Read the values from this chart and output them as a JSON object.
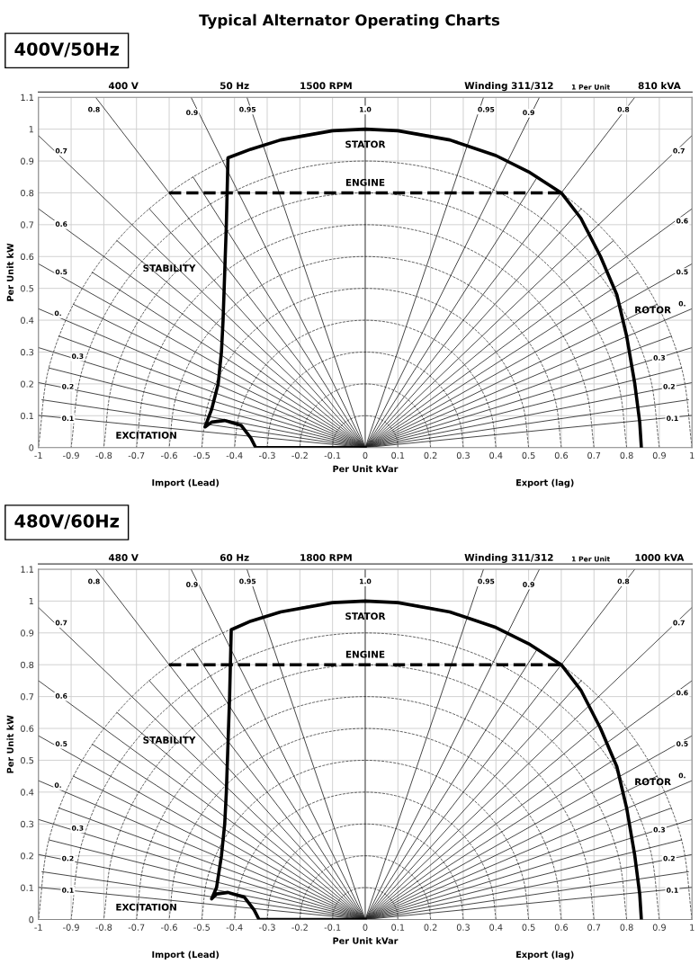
{
  "chart_data": [
    {
      "type": "line",
      "title": "Typical Alternator Operating Charts",
      "subtitle": "400V/50Hz",
      "ylabel": "Per Unit kW",
      "xlabel": "Per Unit kVar",
      "xlim": [
        -1,
        1
      ],
      "xticks": [
        -1,
        -0.9,
        -0.8,
        -0.7,
        -0.6,
        -0.5,
        -0.4,
        -0.3,
        -0.2,
        -0.1,
        0,
        0.1,
        0.2,
        0.3,
        0.4,
        0.5,
        0.6,
        0.7,
        0.8,
        0.9,
        1
      ],
      "ylim": [
        0,
        1.1
      ],
      "yticks": [
        0,
        0.1,
        0.2,
        0.3,
        0.4,
        0.5,
        0.6,
        0.7,
        0.8,
        0.9,
        1,
        1.1
      ],
      "grid": true,
      "legend": false,
      "marker": "none",
      "series": [
        {
          "color": "#000000",
          "x": [
            0,
            -0.335,
            -0.35,
            -0.38,
            -0.43,
            -0.47,
            -0.49,
            -0.47,
            -0.45,
            -0.44,
            -0.435,
            -0.43,
            -0.425,
            -0.42,
            -0.35,
            -0.259,
            -0.1,
            0,
            0.1,
            0.259,
            0.4,
            0.5,
            0.6,
            0.66,
            0.72,
            0.77,
            0.8,
            0.825,
            0.84,
            0.845
          ],
          "values": [
            0,
            0,
            0.03,
            0.07,
            0.085,
            0.08,
            0.065,
            0.12,
            0.2,
            0.3,
            0.4,
            0.55,
            0.7,
            0.91,
            0.937,
            0.966,
            0.995,
            1,
            0.995,
            0.966,
            0.917,
            0.866,
            0.8,
            0.72,
            0.6,
            0.48,
            0.35,
            0.2,
            0.08,
            0
          ]
        },
        {
          "color": "#000000",
          "line_style": "dashed",
          "x": [
            -0.6,
            0.6
          ],
          "values": [
            0.8,
            0.8
          ]
        },
        {
          "color": "#444444",
          "line_style": "dashed",
          "x": [
            0.1,
            0.097,
            0.087,
            0.071,
            0.05,
            0.026,
            0,
            -0.026,
            -0.05,
            -0.071,
            -0.087,
            -0.097,
            -0.1
          ],
          "values": [
            0,
            0.026,
            0.05,
            0.071,
            0.087,
            0.097,
            0.1,
            0.097,
            0.087,
            0.071,
            0.05,
            0.026,
            0
          ]
        },
        {
          "color": "#444444",
          "line_style": "dashed",
          "x": [
            0.2,
            0.193,
            0.173,
            0.141,
            0.1,
            0.052,
            0,
            -0.052,
            -0.1,
            -0.141,
            -0.173,
            -0.193,
            -0.2
          ],
          "values": [
            0,
            0.052,
            0.1,
            0.141,
            0.173,
            0.193,
            0.2,
            0.193,
            0.173,
            0.141,
            0.1,
            0.052,
            0
          ]
        },
        {
          "color": "#444444",
          "line_style": "dashed",
          "x": [
            0.3,
            0.29,
            0.26,
            0.212,
            0.15,
            0.078,
            0,
            -0.078,
            -0.15,
            -0.212,
            -0.26,
            -0.29,
            -0.3
          ],
          "values": [
            0,
            0.078,
            0.15,
            0.212,
            0.26,
            0.29,
            0.3,
            0.29,
            0.26,
            0.212,
            0.15,
            0.078,
            0
          ]
        },
        {
          "color": "#444444",
          "line_style": "dashed",
          "x": [
            0.4,
            0.386,
            0.346,
            0.283,
            0.2,
            0.104,
            0,
            -0.104,
            -0.2,
            -0.283,
            -0.346,
            -0.386,
            -0.4
          ],
          "values": [
            0,
            0.104,
            0.2,
            0.283,
            0.346,
            0.386,
            0.4,
            0.386,
            0.346,
            0.283,
            0.2,
            0.104,
            0
          ]
        },
        {
          "color": "#444444",
          "line_style": "dashed",
          "x": [
            0.5,
            0.483,
            0.433,
            0.354,
            0.25,
            0.13,
            0,
            -0.13,
            -0.25,
            -0.354,
            -0.433,
            -0.483,
            -0.5
          ],
          "values": [
            0,
            0.13,
            0.25,
            0.354,
            0.433,
            0.483,
            0.5,
            0.483,
            0.433,
            0.354,
            0.25,
            0.13,
            0
          ]
        },
        {
          "color": "#444444",
          "line_style": "dashed",
          "x": [
            0.6,
            0.58,
            0.52,
            0.424,
            0.3,
            0.155,
            0,
            -0.155,
            -0.3,
            -0.424,
            -0.52,
            -0.58,
            -0.6
          ],
          "values": [
            0,
            0.155,
            0.3,
            0.424,
            0.52,
            0.58,
            0.6,
            0.58,
            0.52,
            0.424,
            0.3,
            0.155,
            0
          ]
        },
        {
          "color": "#444444",
          "line_style": "dashed",
          "x": [
            0.7,
            0.676,
            0.606,
            0.495,
            0.35,
            0.181,
            0,
            -0.181,
            -0.35,
            -0.495,
            -0.606,
            -0.676,
            -0.7
          ],
          "values": [
            0,
            0.181,
            0.35,
            0.495,
            0.606,
            0.676,
            0.7,
            0.676,
            0.606,
            0.495,
            0.35,
            0.181,
            0
          ]
        },
        {
          "color": "#444444",
          "line_style": "dashed",
          "x": [
            0.8,
            0.773,
            0.693,
            0.566,
            0.4,
            0.207,
            0,
            -0.207,
            -0.4,
            -0.566,
            -0.693,
            -0.773,
            -0.8
          ],
          "values": [
            0,
            0.207,
            0.4,
            0.566,
            0.693,
            0.773,
            0.8,
            0.773,
            0.693,
            0.566,
            0.4,
            0.207,
            0
          ]
        },
        {
          "color": "#444444",
          "line_style": "dashed",
          "x": [
            0.9,
            0.869,
            0.779,
            0.636,
            0.45,
            0.233,
            0,
            -0.233,
            -0.45,
            -0.636,
            -0.779,
            -0.869,
            -0.9
          ],
          "values": [
            0,
            0.233,
            0.45,
            0.636,
            0.779,
            0.869,
            0.9,
            0.869,
            0.779,
            0.636,
            0.45,
            0.233,
            0
          ]
        },
        {
          "color": "#444444",
          "line_style": "dashed",
          "x": [
            1,
            0.966,
            0.866,
            0.707,
            0.5,
            0.259,
            0,
            -0.259,
            -0.5,
            -0.707,
            -0.866,
            -0.966,
            -1
          ],
          "values": [
            0,
            0.259,
            0.5,
            0.707,
            0.866,
            0.966,
            1,
            0.966,
            0.866,
            0.707,
            0.5,
            0.259,
            0
          ]
        },
        {
          "color": "#222222",
          "x": [
            0,
            0
          ],
          "values": [
            0,
            1.1
          ]
        },
        {
          "color": "#222222",
          "x": [
            -1,
            0,
            1
          ],
          "values": [
            0.101,
            0,
            0.101
          ]
        },
        {
          "color": "#222222",
          "x": [
            -0.989,
            0,
            0.989
          ],
          "values": [
            0.15,
            0,
            0.15
          ]
        },
        {
          "color": "#222222",
          "x": [
            -1,
            0,
            1
          ],
          "values": [
            0.204,
            0,
            0.204
          ]
        },
        {
          "color": "#222222",
          "x": [
            -0.968,
            0,
            0.968
          ],
          "values": [
            0.25,
            0,
            0.25
          ]
        },
        {
          "color": "#222222",
          "x": [
            -1,
            0,
            1
          ],
          "values": [
            0.314,
            0,
            0.314
          ]
        },
        {
          "color": "#222222",
          "x": [
            -0.937,
            0,
            0.937
          ],
          "values": [
            0.35,
            0,
            0.35
          ]
        },
        {
          "color": "#222222",
          "x": [
            -1,
            0,
            1
          ],
          "values": [
            0.436,
            0,
            0.436
          ]
        },
        {
          "color": "#222222",
          "x": [
            -0.893,
            0,
            0.893
          ],
          "values": [
            0.45,
            0,
            0.45
          ]
        },
        {
          "color": "#222222",
          "x": [
            -1,
            0,
            1
          ],
          "values": [
            0.577,
            0,
            0.577
          ]
        },
        {
          "color": "#222222",
          "x": [
            -0.835,
            0,
            0.835
          ],
          "values": [
            0.55,
            0,
            0.55
          ]
        },
        {
          "color": "#222222",
          "x": [
            -1,
            0,
            1
          ],
          "values": [
            0.75,
            0,
            0.75
          ]
        },
        {
          "color": "#222222",
          "x": [
            -0.76,
            0,
            0.76
          ],
          "values": [
            0.65,
            0,
            0.65
          ]
        },
        {
          "color": "#222222",
          "x": [
            -1,
            0,
            1
          ],
          "values": [
            0.98,
            0,
            0.98
          ]
        },
        {
          "color": "#222222",
          "x": [
            -0.661,
            0,
            0.661
          ],
          "values": [
            0.75,
            0,
            0.75
          ]
        },
        {
          "color": "#222222",
          "x": [
            -0.825,
            0,
            0.825
          ],
          "values": [
            1.1,
            0,
            1.1
          ]
        },
        {
          "color": "#222222",
          "x": [
            -0.527,
            0,
            0.527
          ],
          "values": [
            0.85,
            0,
            0.85
          ]
        },
        {
          "color": "#222222",
          "x": [
            -0.533,
            0,
            0.533
          ],
          "values": [
            1.1,
            0,
            1.1
          ]
        },
        {
          "color": "#222222",
          "x": [
            -0.362,
            0,
            0.362
          ],
          "values": [
            1.1,
            0,
            1.1
          ]
        }
      ],
      "annotations": [
        "400 V",
        "50 Hz",
        "1500 RPM",
        "Winding 311/312",
        "1 Per Unit",
        "810 kVA",
        "Import (Lead)",
        "Export (lag)",
        "STABILITY",
        "EXCITATION",
        {
          "text": "STATOR",
          "x": 0,
          "y": 0.95
        },
        {
          "text": "ENGINE",
          "x": 0,
          "y": 0.83
        },
        {
          "text": "ROTOR",
          "x": 0.88,
          "y": 0.43
        },
        {
          "text": "0.8",
          "x": -0.83,
          "y": 1.06
        },
        {
          "text": "0.9",
          "x": -0.53,
          "y": 1.05
        },
        {
          "text": "0.95",
          "x": -0.36,
          "y": 1.06
        },
        {
          "text": "1.0",
          "x": 0,
          "y": 1.06
        },
        {
          "text": "0.7",
          "x": -0.93,
          "y": 0.93
        },
        {
          "text": "0.6",
          "x": -0.93,
          "y": 0.7
        },
        {
          "text": "0.5",
          "x": -0.93,
          "y": 0.55
        },
        {
          "text": "0.",
          "x": -0.94,
          "y": 0.42
        },
        {
          "text": "0.3",
          "x": -0.88,
          "y": 0.285
        },
        {
          "text": "0.2",
          "x": -0.91,
          "y": 0.19
        },
        {
          "text": "0.1",
          "x": -0.91,
          "y": 0.09
        },
        {
          "text": "0.95",
          "x": 0.37,
          "y": 1.06
        },
        {
          "text": "0.9",
          "x": 0.5,
          "y": 1.05
        },
        {
          "text": "0.8",
          "x": 0.79,
          "y": 1.06
        },
        {
          "text": "0.7",
          "x": 0.96,
          "y": 0.93
        },
        {
          "text": "0.6",
          "x": 0.97,
          "y": 0.71
        },
        {
          "text": "0.5",
          "x": 0.97,
          "y": 0.55
        },
        {
          "text": "0.",
          "x": 0.97,
          "y": 0.45
        },
        {
          "text": "0.3",
          "x": 0.9,
          "y": 0.28
        },
        {
          "text": "0.2",
          "x": 0.93,
          "y": 0.19
        },
        {
          "text": "0.1",
          "x": 0.94,
          "y": 0.09
        }
      ]
    },
    {
      "type": "line",
      "subtitle": "480V/60Hz",
      "ylabel": "Per Unit kW",
      "xlabel": "Per Unit kVar",
      "xlim": [
        -1,
        1
      ],
      "xticks": [
        -1,
        -0.9,
        -0.8,
        -0.7,
        -0.6,
        -0.5,
        -0.4,
        -0.3,
        -0.2,
        -0.1,
        0,
        0.1,
        0.2,
        0.3,
        0.4,
        0.5,
        0.6,
        0.7,
        0.8,
        0.9,
        1
      ],
      "ylim": [
        0,
        1.1
      ],
      "yticks": [
        0,
        0.1,
        0.2,
        0.3,
        0.4,
        0.5,
        0.6,
        0.7,
        0.8,
        0.9,
        1,
        1.1
      ],
      "grid": true,
      "legend": false,
      "marker": "none",
      "series": [
        {
          "color": "#000000",
          "x": [
            0,
            -0.325,
            -0.34,
            -0.37,
            -0.42,
            -0.455,
            -0.47,
            -0.455,
            -0.44,
            -0.43,
            -0.425,
            -0.42,
            -0.415,
            -0.41,
            -0.35,
            -0.259,
            -0.1,
            0,
            0.1,
            0.259,
            0.4,
            0.5,
            0.6,
            0.66,
            0.72,
            0.77,
            0.8,
            0.825,
            0.84,
            0.845
          ],
          "values": [
            0,
            0,
            0.03,
            0.07,
            0.085,
            0.08,
            0.065,
            0.1,
            0.2,
            0.3,
            0.4,
            0.55,
            0.7,
            0.91,
            0.937,
            0.966,
            0.995,
            1,
            0.995,
            0.966,
            0.917,
            0.866,
            0.8,
            0.72,
            0.6,
            0.48,
            0.35,
            0.2,
            0.08,
            0
          ]
        },
        {
          "color": "#000000",
          "line_style": "dashed",
          "x": [
            -0.6,
            0.6
          ],
          "values": [
            0.8,
            0.8
          ]
        },
        {
          "color": "#444444",
          "line_style": "dashed",
          "x": [
            0.1,
            0.097,
            0.087,
            0.071,
            0.05,
            0.026,
            0,
            -0.026,
            -0.05,
            -0.071,
            -0.087,
            -0.097,
            -0.1
          ],
          "values": [
            0,
            0.026,
            0.05,
            0.071,
            0.087,
            0.097,
            0.1,
            0.097,
            0.087,
            0.071,
            0.05,
            0.026,
            0
          ]
        },
        {
          "color": "#444444",
          "line_style": "dashed",
          "x": [
            0.2,
            0.193,
            0.173,
            0.141,
            0.1,
            0.052,
            0,
            -0.052,
            -0.1,
            -0.141,
            -0.173,
            -0.193,
            -0.2
          ],
          "values": [
            0,
            0.052,
            0.1,
            0.141,
            0.173,
            0.193,
            0.2,
            0.193,
            0.173,
            0.141,
            0.1,
            0.052,
            0
          ]
        },
        {
          "color": "#444444",
          "line_style": "dashed",
          "x": [
            0.3,
            0.29,
            0.26,
            0.212,
            0.15,
            0.078,
            0,
            -0.078,
            -0.15,
            -0.212,
            -0.26,
            -0.29,
            -0.3
          ],
          "values": [
            0,
            0.078,
            0.15,
            0.212,
            0.26,
            0.29,
            0.3,
            0.29,
            0.26,
            0.212,
            0.15,
            0.078,
            0
          ]
        },
        {
          "color": "#444444",
          "line_style": "dashed",
          "x": [
            0.4,
            0.386,
            0.346,
            0.283,
            0.2,
            0.104,
            0,
            -0.104,
            -0.2,
            -0.283,
            -0.346,
            -0.386,
            -0.4
          ],
          "values": [
            0,
            0.104,
            0.2,
            0.283,
            0.346,
            0.386,
            0.4,
            0.386,
            0.346,
            0.283,
            0.2,
            0.104,
            0
          ]
        },
        {
          "color": "#444444",
          "line_style": "dashed",
          "x": [
            0.5,
            0.483,
            0.433,
            0.354,
            0.25,
            0.13,
            0,
            -0.13,
            -0.25,
            -0.354,
            -0.433,
            -0.483,
            -0.5
          ],
          "values": [
            0,
            0.13,
            0.25,
            0.354,
            0.433,
            0.483,
            0.5,
            0.483,
            0.433,
            0.354,
            0.25,
            0.13,
            0
          ]
        },
        {
          "color": "#444444",
          "line_style": "dashed",
          "x": [
            0.6,
            0.58,
            0.52,
            0.424,
            0.3,
            0.155,
            0,
            -0.155,
            -0.3,
            -0.424,
            -0.52,
            -0.58,
            -0.6
          ],
          "values": [
            0,
            0.155,
            0.3,
            0.424,
            0.52,
            0.58,
            0.6,
            0.58,
            0.52,
            0.424,
            0.3,
            0.155,
            0
          ]
        },
        {
          "color": "#444444",
          "line_style": "dashed",
          "x": [
            0.7,
            0.676,
            0.606,
            0.495,
            0.35,
            0.181,
            0,
            -0.181,
            -0.35,
            -0.495,
            -0.606,
            -0.676,
            -0.7
          ],
          "values": [
            0,
            0.181,
            0.35,
            0.495,
            0.606,
            0.676,
            0.7,
            0.676,
            0.606,
            0.495,
            0.35,
            0.181,
            0
          ]
        },
        {
          "color": "#444444",
          "line_style": "dashed",
          "x": [
            0.8,
            0.773,
            0.693,
            0.566,
            0.4,
            0.207,
            0,
            -0.207,
            -0.4,
            -0.566,
            -0.693,
            -0.773,
            -0.8
          ],
          "values": [
            0,
            0.207,
            0.4,
            0.566,
            0.693,
            0.773,
            0.8,
            0.773,
            0.693,
            0.566,
            0.4,
            0.207,
            0
          ]
        },
        {
          "color": "#444444",
          "line_style": "dashed",
          "x": [
            0.9,
            0.869,
            0.779,
            0.636,
            0.45,
            0.233,
            0,
            -0.233,
            -0.45,
            -0.636,
            -0.779,
            -0.869,
            -0.9
          ],
          "values": [
            0,
            0.233,
            0.45,
            0.636,
            0.779,
            0.869,
            0.9,
            0.869,
            0.779,
            0.636,
            0.45,
            0.233,
            0
          ]
        },
        {
          "color": "#444444",
          "line_style": "dashed",
          "x": [
            1,
            0.966,
            0.866,
            0.707,
            0.5,
            0.259,
            0,
            -0.259,
            -0.5,
            -0.707,
            -0.866,
            -0.966,
            -1
          ],
          "values": [
            0,
            0.259,
            0.5,
            0.707,
            0.866,
            0.966,
            1,
            0.966,
            0.866,
            0.707,
            0.5,
            0.259,
            0
          ]
        },
        {
          "color": "#222222",
          "x": [
            0,
            0
          ],
          "values": [
            0,
            1.1
          ]
        },
        {
          "color": "#222222",
          "x": [
            -1,
            0,
            1
          ],
          "values": [
            0.101,
            0,
            0.101
          ]
        },
        {
          "color": "#222222",
          "x": [
            -0.989,
            0,
            0.989
          ],
          "values": [
            0.15,
            0,
            0.15
          ]
        },
        {
          "color": "#222222",
          "x": [
            -1,
            0,
            1
          ],
          "values": [
            0.204,
            0,
            0.204
          ]
        },
        {
          "color": "#222222",
          "x": [
            -0.968,
            0,
            0.968
          ],
          "values": [
            0.25,
            0,
            0.25
          ]
        },
        {
          "color": "#222222",
          "x": [
            -1,
            0,
            1
          ],
          "values": [
            0.314,
            0,
            0.314
          ]
        },
        {
          "color": "#222222",
          "x": [
            -0.937,
            0,
            0.937
          ],
          "values": [
            0.35,
            0,
            0.35
          ]
        },
        {
          "color": "#222222",
          "x": [
            -1,
            0,
            1
          ],
          "values": [
            0.436,
            0,
            0.436
          ]
        },
        {
          "color": "#222222",
          "x": [
            -0.893,
            0,
            0.893
          ],
          "values": [
            0.45,
            0,
            0.45
          ]
        },
        {
          "color": "#222222",
          "x": [
            -1,
            0,
            1
          ],
          "values": [
            0.577,
            0,
            0.577
          ]
        },
        {
          "color": "#222222",
          "x": [
            -0.835,
            0,
            0.835
          ],
          "values": [
            0.55,
            0,
            0.55
          ]
        },
        {
          "color": "#222222",
          "x": [
            -1,
            0,
            1
          ],
          "values": [
            0.75,
            0,
            0.75
          ]
        },
        {
          "color": "#222222",
          "x": [
            -0.76,
            0,
            0.76
          ],
          "values": [
            0.65,
            0,
            0.65
          ]
        },
        {
          "color": "#222222",
          "x": [
            -1,
            0,
            1
          ],
          "values": [
            0.98,
            0,
            0.98
          ]
        },
        {
          "color": "#222222",
          "x": [
            -0.661,
            0,
            0.661
          ],
          "values": [
            0.75,
            0,
            0.75
          ]
        },
        {
          "color": "#222222",
          "x": [
            -0.825,
            0,
            0.825
          ],
          "values": [
            1.1,
            0,
            1.1
          ]
        },
        {
          "color": "#222222",
          "x": [
            -0.527,
            0,
            0.527
          ],
          "values": [
            0.85,
            0,
            0.85
          ]
        },
        {
          "color": "#222222",
          "x": [
            -0.533,
            0,
            0.533
          ],
          "values": [
            1.1,
            0,
            1.1
          ]
        },
        {
          "color": "#222222",
          "x": [
            -0.362,
            0,
            0.362
          ],
          "values": [
            1.1,
            0,
            1.1
          ]
        }
      ],
      "annotations": [
        "480 V",
        "60 Hz",
        "1800 RPM",
        "Winding 311/312",
        "1 Per Unit",
        "1000 kVA",
        "Import (Lead)",
        "Export (lag)",
        "STABILITY",
        "EXCITATION",
        {
          "text": "STATOR",
          "x": 0,
          "y": 0.95
        },
        {
          "text": "ENGINE",
          "x": 0,
          "y": 0.83
        },
        {
          "text": "ROTOR",
          "x": 0.88,
          "y": 0.43
        },
        {
          "text": "0.8",
          "x": -0.83,
          "y": 1.06
        },
        {
          "text": "0.9",
          "x": -0.53,
          "y": 1.05
        },
        {
          "text": "0.95",
          "x": -0.36,
          "y": 1.06
        },
        {
          "text": "1.0",
          "x": 0,
          "y": 1.06
        },
        {
          "text": "0.7",
          "x": -0.93,
          "y": 0.93
        },
        {
          "text": "0.6",
          "x": -0.93,
          "y": 0.7
        },
        {
          "text": "0.5",
          "x": -0.93,
          "y": 0.55
        },
        {
          "text": "0.",
          "x": -0.94,
          "y": 0.42
        },
        {
          "text": "0.3",
          "x": -0.88,
          "y": 0.285
        },
        {
          "text": "0.2",
          "x": -0.91,
          "y": 0.19
        },
        {
          "text": "0.1",
          "x": -0.91,
          "y": 0.09
        },
        {
          "text": "0.95",
          "x": 0.37,
          "y": 1.06
        },
        {
          "text": "0.9",
          "x": 0.5,
          "y": 1.05
        },
        {
          "text": "0.8",
          "x": 0.79,
          "y": 1.06
        },
        {
          "text": "0.7",
          "x": 0.96,
          "y": 0.93
        },
        {
          "text": "0.6",
          "x": 0.97,
          "y": 0.71
        },
        {
          "text": "0.5",
          "x": 0.97,
          "y": 0.55
        },
        {
          "text": "0.",
          "x": 0.97,
          "y": 0.45
        },
        {
          "text": "0.3",
          "x": 0.9,
          "y": 0.28
        },
        {
          "text": "0.2",
          "x": 0.93,
          "y": 0.19
        },
        {
          "text": "0.1",
          "x": 0.94,
          "y": 0.09
        }
      ]
    }
  ]
}
